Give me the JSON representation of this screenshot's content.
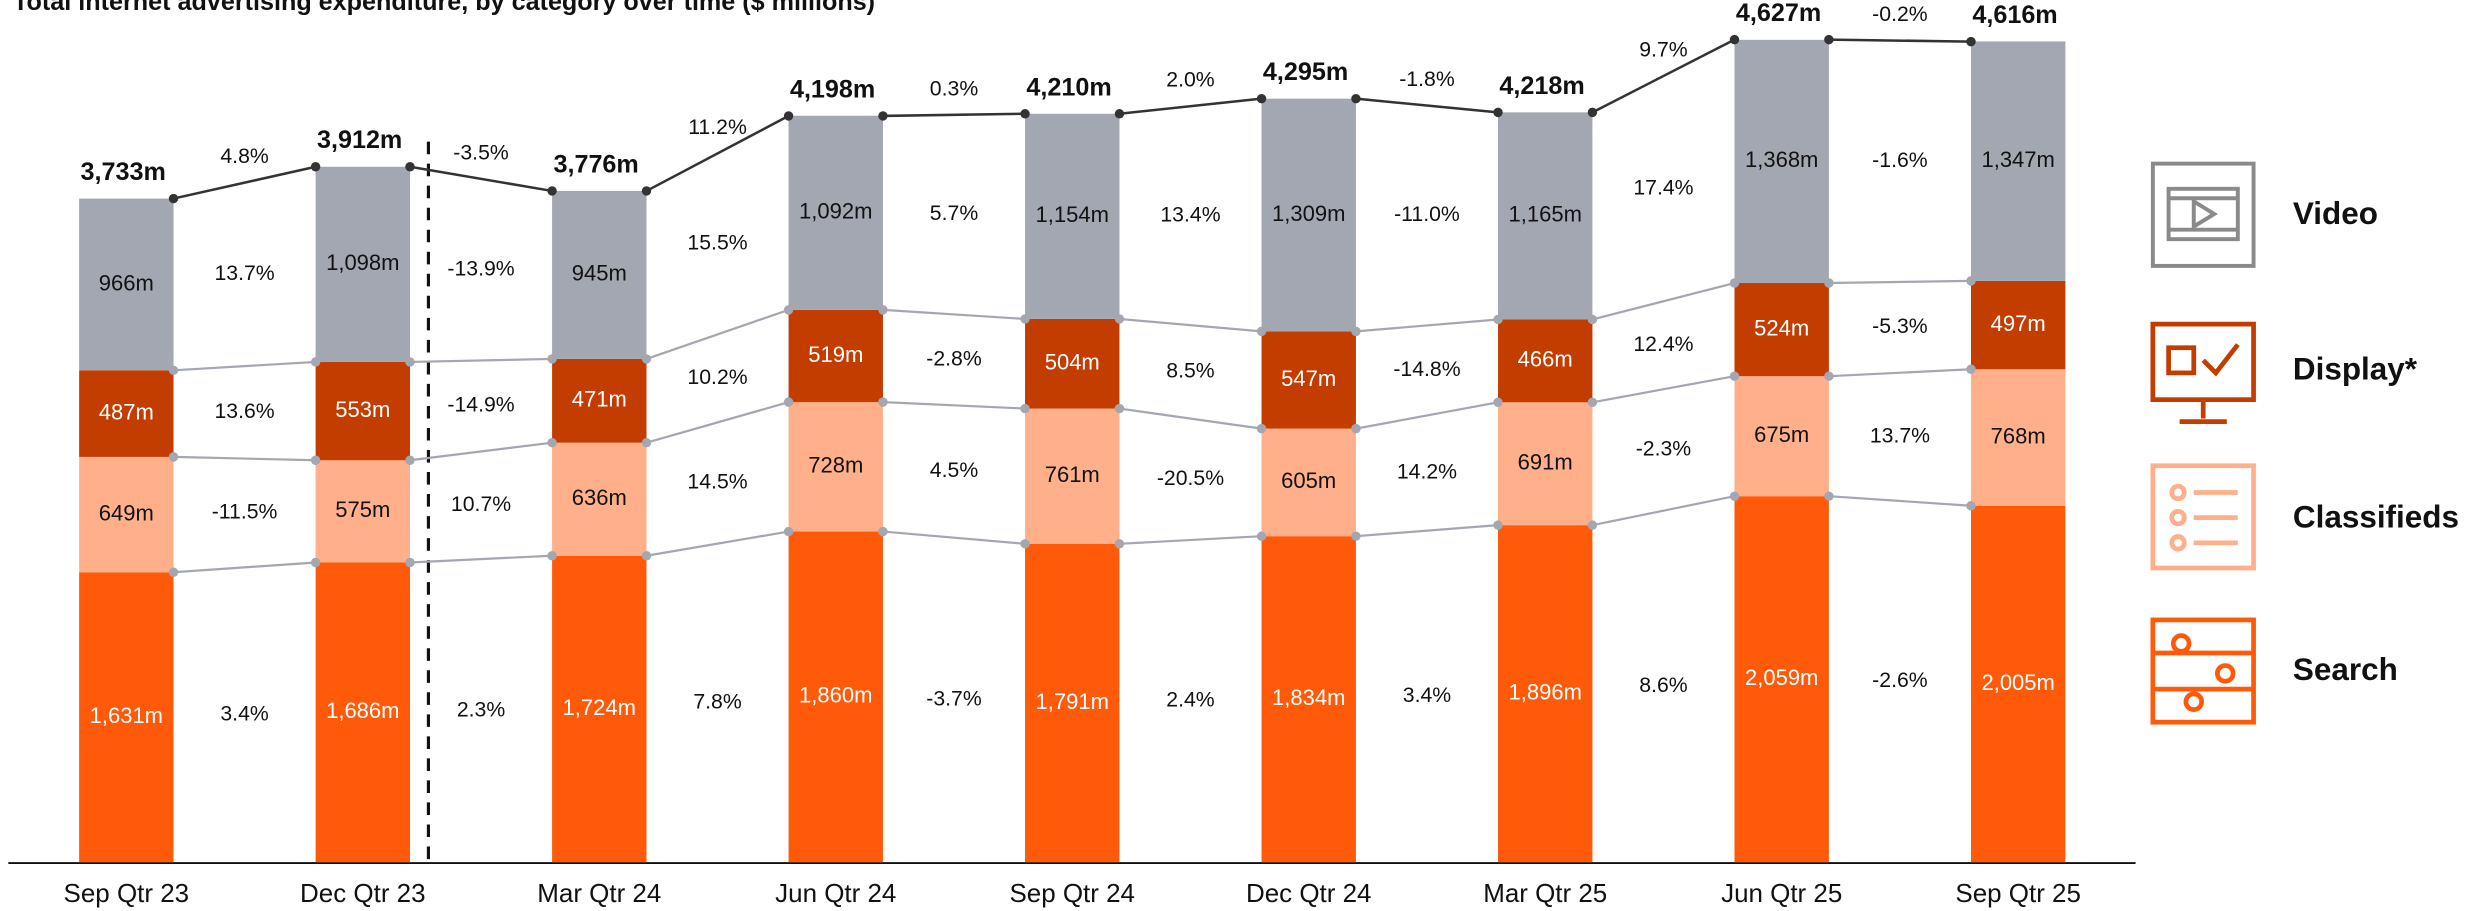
{
  "chart_data": {
    "type": "stacked_bar",
    "title": "Total internet advertising expenditure, by category over time ($ millions)",
    "categories": [
      "Sep Qtr 23",
      "Dec Qtr 23",
      "Mar Qtr 24",
      "Jun Qtr 24",
      "Sep Qtr 24",
      "Dec Qtr 24",
      "Mar Qtr 25",
      "Jun Qtr 25",
      "Sep Qtr 25"
    ],
    "ylim": [
      0,
      4850
    ],
    "series": [
      {
        "name": "Search",
        "color": "#ff5a0a",
        "text_color": "#ffffff",
        "values": [
          1631,
          1686,
          1724,
          1860,
          1791,
          1834,
          1896,
          2059,
          2005
        ],
        "value_labels": [
          "1,631m",
          "1,686m",
          "1,724m",
          "1,860m",
          "1,791m",
          "1,834m",
          "1,896m",
          "2,059m",
          "2,005m"
        ],
        "growth": [
          3.4,
          2.3,
          7.8,
          -3.7,
          2.4,
          3.4,
          8.6,
          -2.6
        ],
        "growth_labels": [
          "3.4%",
          "2.3%",
          "7.8%",
          "-3.7%",
          "2.4%",
          "3.4%",
          "8.6%",
          "-2.6%"
        ]
      },
      {
        "name": "Classifieds",
        "color": "#ffb08a",
        "text_color": "#111111",
        "values": [
          649,
          575,
          636,
          728,
          761,
          605,
          691,
          675,
          768
        ],
        "value_labels": [
          "649m",
          "575m",
          "636m",
          "728m",
          "761m",
          "605m",
          "691m",
          "675m",
          "768m"
        ],
        "growth": [
          -11.5,
          10.7,
          14.5,
          4.5,
          -20.5,
          14.2,
          -2.3,
          13.7
        ],
        "growth_labels": [
          "-11.5%",
          "10.7%",
          "14.5%",
          "4.5%",
          "-20.5%",
          "14.2%",
          "-2.3%",
          "13.7%"
        ]
      },
      {
        "name": "Display*",
        "color": "#c43d00",
        "text_color": "#ffffff",
        "values": [
          487,
          553,
          471,
          519,
          504,
          547,
          466,
          524,
          497
        ],
        "value_labels": [
          "487m",
          "553m",
          "471m",
          "519m",
          "504m",
          "547m",
          "466m",
          "524m",
          "497m"
        ],
        "growth": [
          13.6,
          -14.9,
          10.2,
          -2.8,
          8.5,
          -14.8,
          12.4,
          -5.3
        ],
        "growth_labels": [
          "13.6%",
          "-14.9%",
          "10.2%",
          "-2.8%",
          "8.5%",
          "-14.8%",
          "12.4%",
          "-5.3%"
        ]
      },
      {
        "name": "Video",
        "color": "#a3a7b1",
        "text_color": "#111111",
        "values": [
          966,
          1098,
          945,
          1092,
          1154,
          1309,
          1165,
          1368,
          1347
        ],
        "value_labels": [
          "966m",
          "1,098m",
          "945m",
          "1,092m",
          "1,154m",
          "1,309m",
          "1,165m",
          "1,368m",
          "1,347m"
        ],
        "growth": [
          13.7,
          -13.9,
          15.5,
          5.7,
          13.4,
          -11.0,
          17.4,
          -1.6
        ],
        "growth_labels": [
          "13.7%",
          "-13.9%",
          "15.5%",
          "5.7%",
          "13.4%",
          "-11.0%",
          "17.4%",
          "-1.6%"
        ]
      }
    ],
    "totals": {
      "values": [
        3733,
        3912,
        3776,
        4198,
        4210,
        4295,
        4218,
        4627,
        4616
      ],
      "value_labels": [
        "3,733m",
        "3,912m",
        "3,776m",
        "4,198m",
        "4,210m",
        "4,295m",
        "4,218m",
        "4,627m",
        "4,616m"
      ],
      "growth": [
        4.8,
        -3.5,
        11.2,
        0.3,
        2.0,
        -1.8,
        9.7,
        -0.2
      ],
      "growth_labels": [
        "4.8%",
        "-3.5%",
        "11.2%",
        "0.3%",
        "2.0%",
        "-1.8%",
        "9.7%",
        "-0.2%"
      ]
    }
  }
}
